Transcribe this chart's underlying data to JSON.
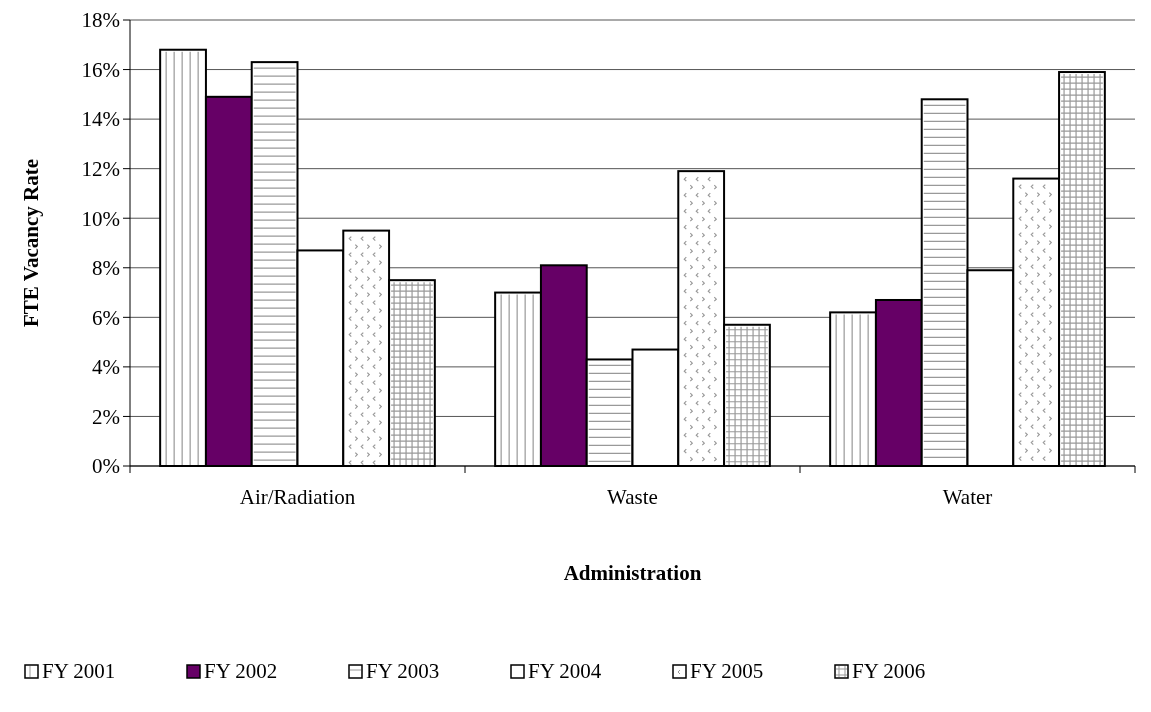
{
  "chart_data": {
    "type": "bar",
    "xlabel": "Administration",
    "ylabel": "FTE Vacancy Rate",
    "categories": [
      "Air/Radiation",
      "Waste",
      "Water"
    ],
    "series": [
      {
        "name": "FY 2001",
        "color": "#ffffff",
        "values": [
          16.8,
          7.0,
          6.2
        ]
      },
      {
        "name": "FY 2002",
        "color": "#660066",
        "values": [
          14.9,
          8.1,
          6.7
        ]
      },
      {
        "name": "FY 2003",
        "color": "#ffffff",
        "values": [
          16.3,
          4.3,
          14.8
        ]
      },
      {
        "name": "FY 2004",
        "color": "#ffffff",
        "values": [
          8.7,
          4.7,
          7.9
        ]
      },
      {
        "name": "FY 2005",
        "color": "#ffffff",
        "values": [
          9.5,
          11.9,
          11.6
        ]
      },
      {
        "name": "FY 2006",
        "color": "#ffffff",
        "values": [
          7.5,
          5.7,
          15.9
        ]
      }
    ],
    "ylim": [
      0,
      18
    ],
    "yticks": [
      {
        "value": 0,
        "label": "0%"
      },
      {
        "value": 2,
        "label": "2%"
      },
      {
        "value": 4,
        "label": "4%"
      },
      {
        "value": 6,
        "label": "6%"
      },
      {
        "value": 8,
        "label": "8%"
      },
      {
        "value": 10,
        "label": "10%"
      },
      {
        "value": 12,
        "label": "12%"
      },
      {
        "value": 14,
        "label": "14%"
      },
      {
        "value": 16,
        "label": "16%"
      },
      {
        "value": 18,
        "label": "18%"
      }
    ],
    "grid": "y",
    "legend": "bottom"
  }
}
